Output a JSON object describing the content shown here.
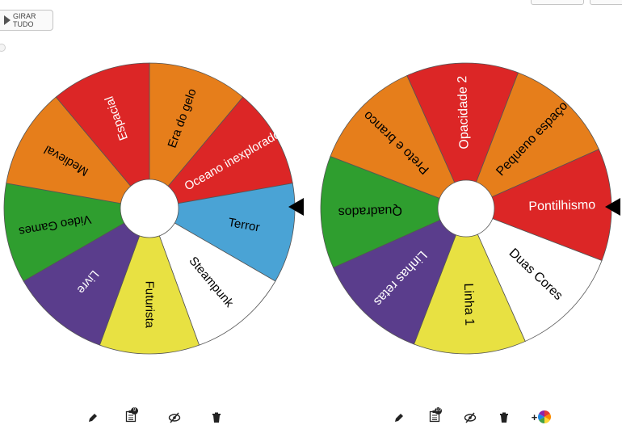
{
  "spin_all_label": "GIRAR TUDO",
  "wheels": [
    {
      "id": "left",
      "segments": [
        {
          "label": "Era do gelo",
          "color": "#e67e1b",
          "text_color": "#000000"
        },
        {
          "label": "Oceano inexplorado",
          "color": "#dc2626",
          "text_color": "#ffffff"
        },
        {
          "label": "Terror",
          "color": "#4aa3d5",
          "text_color": "#000000"
        },
        {
          "label": "Steampunk",
          "color": "#ffffff",
          "text_color": "#000000"
        },
        {
          "label": "Futurista",
          "color": "#e8e142",
          "text_color": "#000000"
        },
        {
          "label": "Livre",
          "color": "#5a3d8c",
          "text_color": "#ffffff"
        },
        {
          "label": "Video Games",
          "color": "#2f9e2f",
          "text_color": "#000000"
        },
        {
          "label": "Medieval",
          "color": "#e67e1b",
          "text_color": "#000000"
        },
        {
          "label": "Espacial",
          "color": "#dc2626",
          "text_color": "#ffffff"
        }
      ]
    },
    {
      "id": "right",
      "segments": [
        {
          "label": "Opacidade 2",
          "color": "#dc2626",
          "text_color": "#ffffff"
        },
        {
          "label": "Pequeno espaço",
          "color": "#e67e1b",
          "text_color": "#000000"
        },
        {
          "label": "Pontilhismo",
          "color": "#dc2626",
          "text_color": "#ffffff"
        },
        {
          "label": "Duas Cores",
          "color": "#ffffff",
          "text_color": "#000000"
        },
        {
          "label": "Linha 1",
          "color": "#e8e142",
          "text_color": "#000000"
        },
        {
          "label": "Linhas retas",
          "color": "#5a3d8c",
          "text_color": "#ffffff"
        },
        {
          "label": "Quadrados",
          "color": "#2f9e2f",
          "text_color": "#000000"
        },
        {
          "label": "Preto e branco",
          "color": "#e67e1b",
          "text_color": "#000000"
        }
      ]
    }
  ],
  "toolbars": [
    {
      "edit": "pencil-icon",
      "entries": "clipboard-list-icon",
      "badge": "9",
      "hide": "eye-slash-icon",
      "delete": "trash-icon"
    },
    {
      "edit": "pencil-icon",
      "entries": "clipboard-list-icon",
      "badge": "10",
      "hide": "eye-slash-icon",
      "delete": "trash-icon",
      "add_color": "color-wheel-icon",
      "add_label": "+"
    }
  ]
}
